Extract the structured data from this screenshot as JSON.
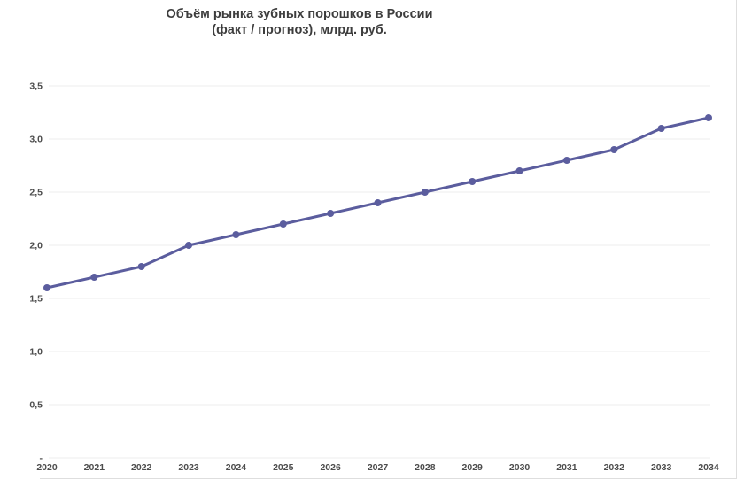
{
  "chart_data": {
    "type": "line",
    "title": "Объём рынка зубных порошков в России (факт / прогноз), млрд. руб.",
    "title_lines": [
      "Объём рынка зубных порошков в России",
      "(факт / прогноз), млрд. руб."
    ],
    "categories": [
      "2020",
      "2021",
      "2022",
      "2023",
      "2024",
      "2025",
      "2026",
      "2027",
      "2028",
      "2029",
      "2030",
      "2031",
      "2032",
      "2033",
      "2034"
    ],
    "values": [
      1.6,
      1.7,
      1.8,
      2.0,
      2.1,
      2.2,
      2.3,
      2.4,
      2.5,
      2.6,
      2.7,
      2.8,
      2.9,
      3.1,
      3.2
    ],
    "yticks": [
      {
        "value": 3.5,
        "label": "3,5"
      },
      {
        "value": 3.0,
        "label": "3,0"
      },
      {
        "value": 2.5,
        "label": "2,5"
      },
      {
        "value": 2.0,
        "label": "2,0"
      },
      {
        "value": 1.5,
        "label": "1,5"
      },
      {
        "value": 1.0,
        "label": "1,0"
      },
      {
        "value": 0.5,
        "label": "0,5"
      },
      {
        "value": 0.0,
        "label": "-"
      }
    ],
    "ylim": [
      0,
      3.5
    ],
    "grid": true,
    "legend": "none",
    "line_color": "#5b5d9e",
    "marker": "circle",
    "gridline_color": "#ececec"
  }
}
